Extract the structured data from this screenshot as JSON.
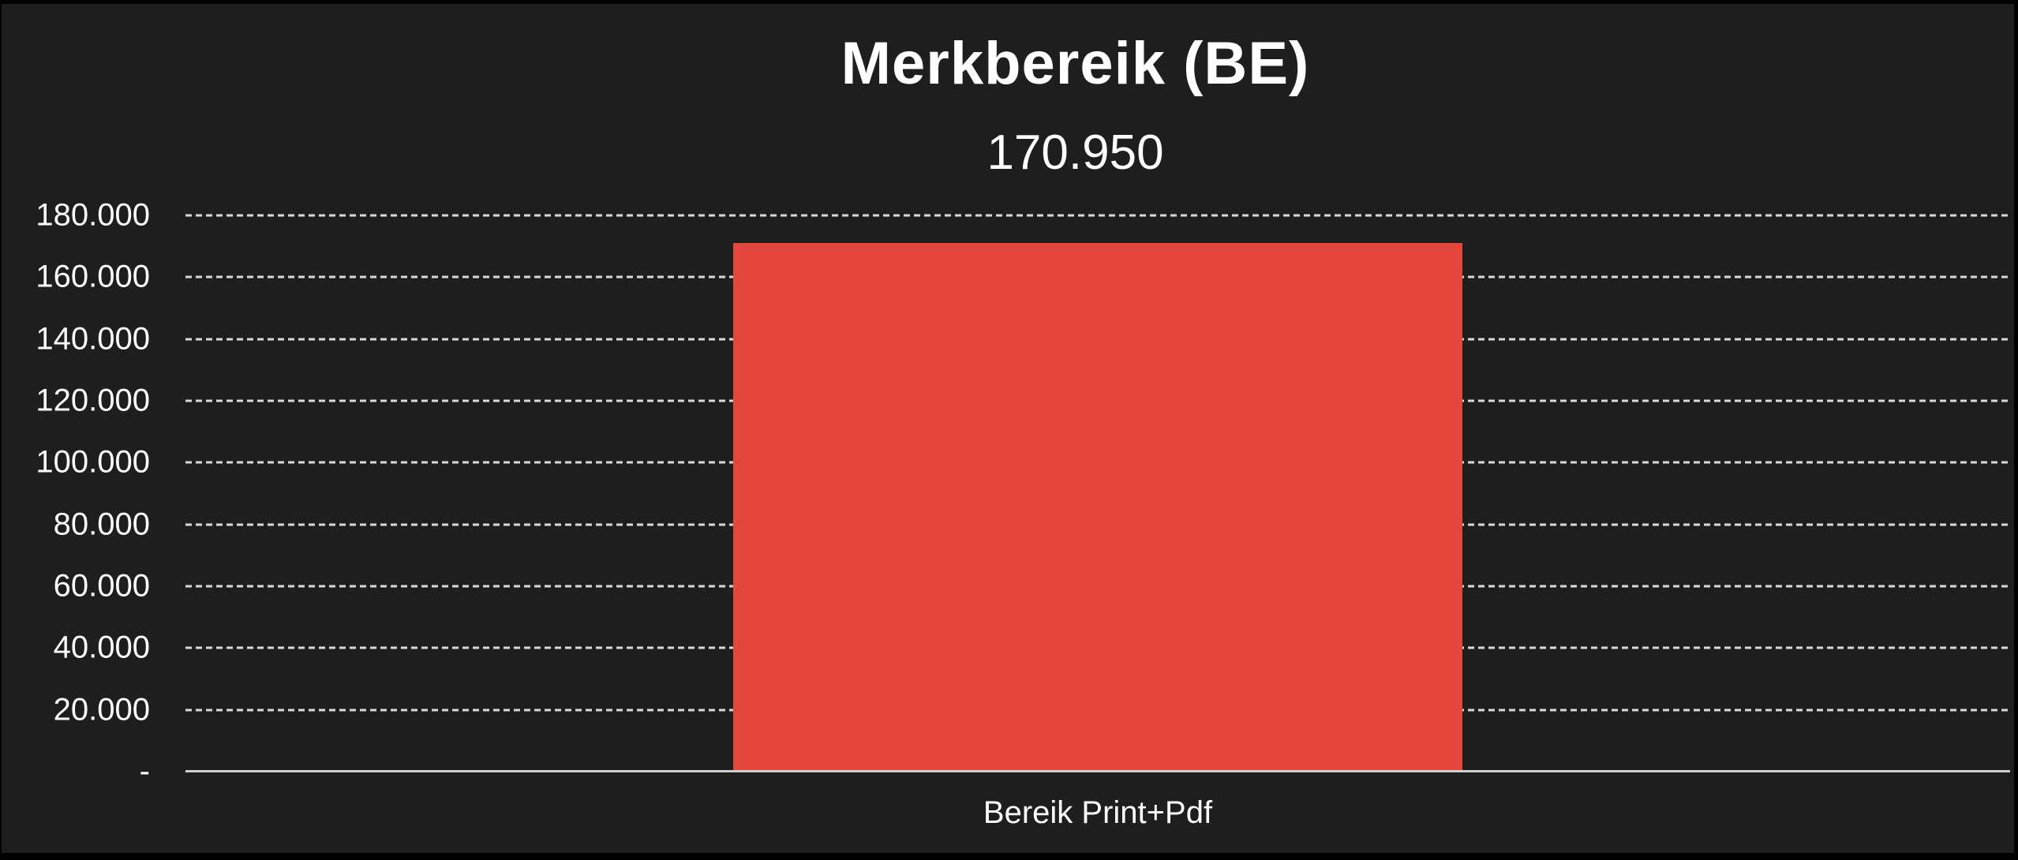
{
  "title": "Merkbereik (BE)",
  "subtitle": "170.950",
  "colors": {
    "frame": "#000000",
    "background": "#1f1e1e",
    "bar": "#e5473e",
    "gridline": "#d9d9d9",
    "axis_line": "#cfcfcf",
    "text": "#ffffff"
  },
  "chart_data": {
    "type": "bar",
    "title": "Merkbereik (BE)",
    "subtitle": "170.950",
    "categories": [
      "Bereik Print+Pdf"
    ],
    "values": [
      170950
    ],
    "value_labels": [
      "170.950"
    ],
    "xlabel": "",
    "ylabel": "",
    "ylim": [
      0,
      180000
    ],
    "ytick_step": 20000,
    "yticks": [
      {
        "value": 180000,
        "label": "180.000"
      },
      {
        "value": 160000,
        "label": "160.000"
      },
      {
        "value": 140000,
        "label": "140.000"
      },
      {
        "value": 120000,
        "label": "120.000"
      },
      {
        "value": 100000,
        "label": "100.000"
      },
      {
        "value": 80000,
        "label": "80.000"
      },
      {
        "value": 60000,
        "label": "60.000"
      },
      {
        "value": 40000,
        "label": "40.000"
      },
      {
        "value": 20000,
        "label": "20.000"
      },
      {
        "value": 0,
        "label": "-"
      }
    ],
    "grid": "horizontal-dashed",
    "legend": "none",
    "bar_color": "#e5473e",
    "background_color": "#1f1e1e"
  }
}
